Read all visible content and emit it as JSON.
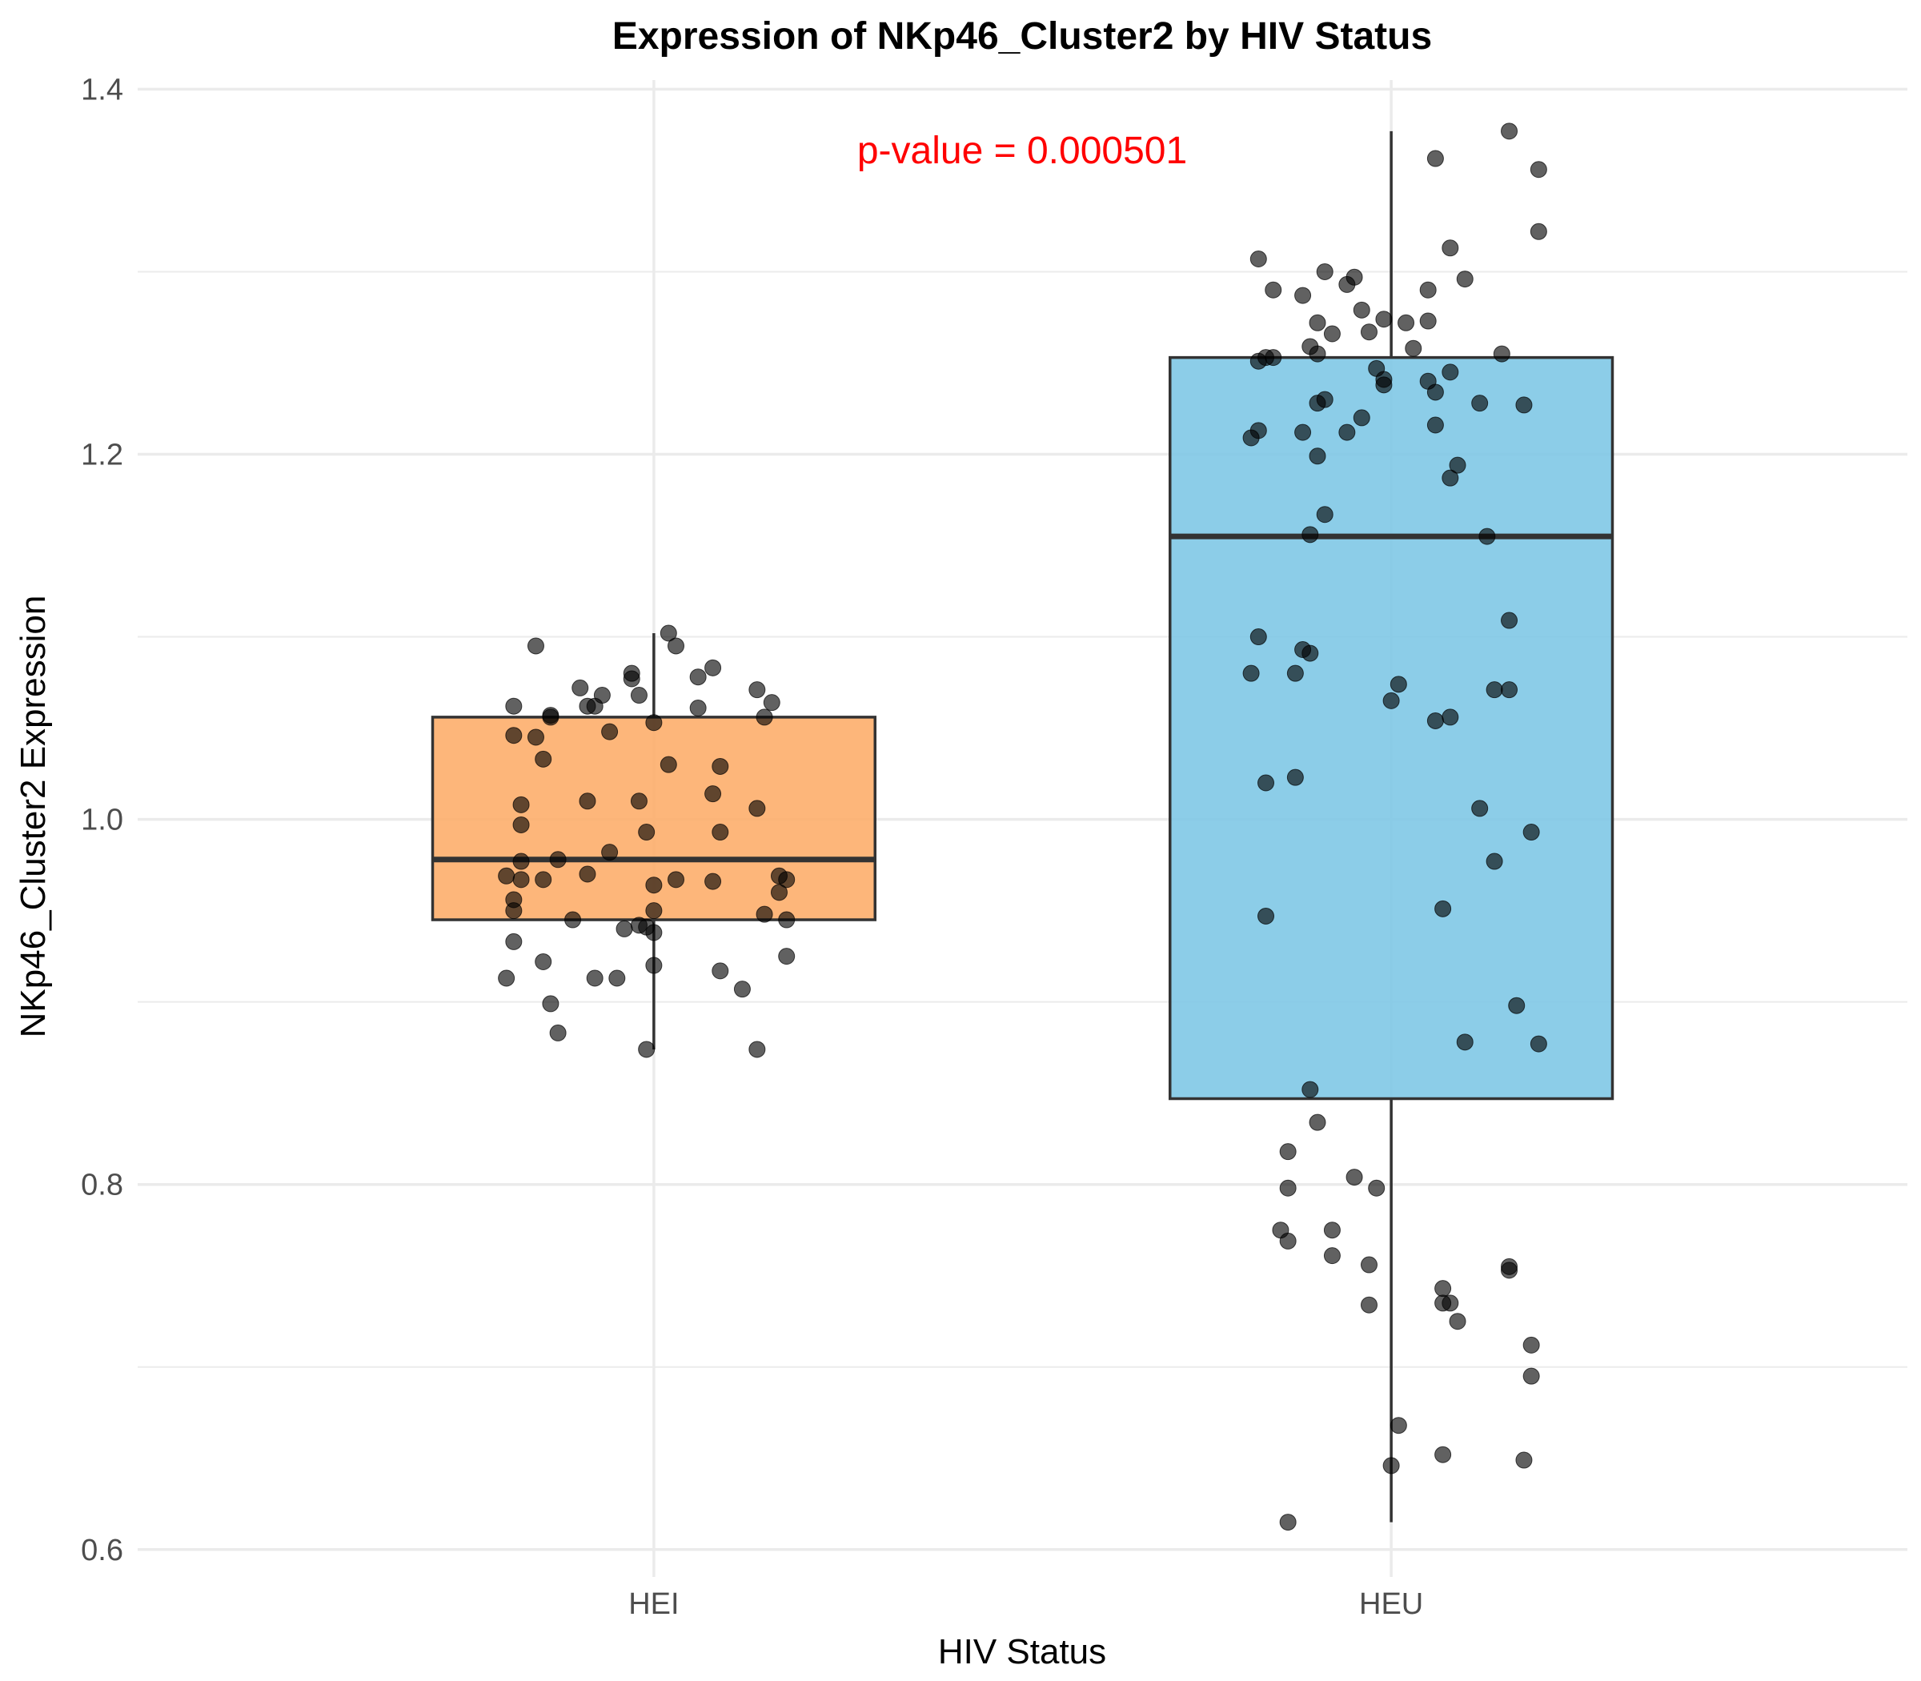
{
  "chart_data": {
    "type": "box",
    "title": "Expression of NKp46_Cluster2 by HIV Status",
    "xlabel": "HIV Status",
    "ylabel": "NKp46_Cluster2 Expression",
    "ylim": [
      0.585,
      1.405
    ],
    "yticks": [
      0.6,
      0.8,
      1.0,
      1.2,
      1.4
    ],
    "ytick_labels": [
      "0.6",
      "0.8",
      "1.0",
      "1.2",
      "1.4"
    ],
    "grid": true,
    "annotation": {
      "text": "p-value = 0.000501",
      "color": "#ff0000",
      "x_between": [
        "HEI",
        "HEU"
      ],
      "y": 1.375
    },
    "categories": [
      "HEI",
      "HEU"
    ],
    "boxes": [
      {
        "category": "HEI",
        "color": "#fdae6b",
        "min": 0.874,
        "q1": 0.945,
        "median": 0.978,
        "q3": 1.056,
        "max": 1.102
      },
      {
        "category": "HEU",
        "color": "#7fc8e6",
        "min": 0.615,
        "q1": 0.847,
        "median": 1.155,
        "q3": 1.253,
        "max": 1.377
      }
    ],
    "points": {
      "HEI": [
        [
          -0.16,
          1.095
        ],
        [
          0.02,
          1.102
        ],
        [
          0.03,
          1.095
        ],
        [
          -0.1,
          1.072
        ],
        [
          -0.03,
          1.08
        ],
        [
          -0.03,
          1.077
        ],
        [
          0.08,
          1.083
        ],
        [
          0.06,
          1.078
        ],
        [
          0.14,
          1.071
        ],
        [
          -0.07,
          1.068
        ],
        [
          -0.02,
          1.068
        ],
        [
          -0.09,
          1.062
        ],
        [
          -0.08,
          1.062
        ],
        [
          -0.19,
          1.062
        ],
        [
          0.06,
          1.061
        ],
        [
          0.16,
          1.064
        ],
        [
          -0.14,
          1.057
        ],
        [
          -0.14,
          1.056
        ],
        [
          0.15,
          1.056
        ],
        [
          0.0,
          1.053
        ],
        [
          -0.06,
          1.048
        ],
        [
          -0.19,
          1.046
        ],
        [
          -0.16,
          1.045
        ],
        [
          -0.15,
          1.033
        ],
        [
          0.02,
          1.03
        ],
        [
          0.09,
          1.029
        ],
        [
          0.08,
          1.014
        ],
        [
          0.14,
          1.006
        ],
        [
          -0.09,
          1.01
        ],
        [
          -0.02,
          1.01
        ],
        [
          -0.18,
          1.008
        ],
        [
          -0.18,
          0.997
        ],
        [
          -0.01,
          0.993
        ],
        [
          0.09,
          0.993
        ],
        [
          -0.06,
          0.982
        ],
        [
          -0.18,
          0.977
        ],
        [
          -0.13,
          0.978
        ],
        [
          -0.2,
          0.969
        ],
        [
          -0.09,
          0.97
        ],
        [
          0.17,
          0.969
        ],
        [
          -0.18,
          0.967
        ],
        [
          -0.15,
          0.967
        ],
        [
          0.0,
          0.964
        ],
        [
          0.03,
          0.967
        ],
        [
          0.08,
          0.966
        ],
        [
          0.18,
          0.967
        ],
        [
          0.17,
          0.96
        ],
        [
          -0.19,
          0.956
        ],
        [
          -0.19,
          0.95
        ],
        [
          0.0,
          0.95
        ],
        [
          0.15,
          0.948
        ],
        [
          0.18,
          0.945
        ],
        [
          -0.11,
          0.945
        ],
        [
          -0.04,
          0.94
        ],
        [
          -0.02,
          0.942
        ],
        [
          -0.01,
          0.941
        ],
        [
          0.0,
          0.938
        ],
        [
          -0.19,
          0.933
        ],
        [
          0.18,
          0.925
        ],
        [
          -0.15,
          0.922
        ],
        [
          0.0,
          0.92
        ],
        [
          0.09,
          0.917
        ],
        [
          -0.2,
          0.913
        ],
        [
          -0.08,
          0.913
        ],
        [
          -0.05,
          0.913
        ],
        [
          0.12,
          0.907
        ],
        [
          -0.14,
          0.899
        ],
        [
          -0.13,
          0.883
        ],
        [
          -0.01,
          0.874
        ],
        [
          0.14,
          0.874
        ]
      ],
      "HEU": [
        [
          0.16,
          1.377
        ],
        [
          0.06,
          1.362
        ],
        [
          0.2,
          1.356
        ],
        [
          0.2,
          1.322
        ],
        [
          0.08,
          1.313
        ],
        [
          -0.18,
          1.307
        ],
        [
          -0.09,
          1.3
        ],
        [
          -0.05,
          1.297
        ],
        [
          0.1,
          1.296
        ],
        [
          -0.16,
          1.29
        ],
        [
          -0.06,
          1.293
        ],
        [
          0.05,
          1.29
        ],
        [
          -0.12,
          1.287
        ],
        [
          -0.04,
          1.279
        ],
        [
          -0.1,
          1.272
        ],
        [
          0.02,
          1.272
        ],
        [
          0.05,
          1.273
        ],
        [
          -0.01,
          1.274
        ],
        [
          -0.08,
          1.266
        ],
        [
          -0.03,
          1.267
        ],
        [
          -0.11,
          1.259
        ],
        [
          0.03,
          1.258
        ],
        [
          -0.1,
          1.255
        ],
        [
          -0.17,
          1.253
        ],
        [
          -0.18,
          1.251
        ],
        [
          -0.16,
          1.253
        ],
        [
          0.15,
          1.255
        ],
        [
          -0.02,
          1.247
        ],
        [
          0.08,
          1.245
        ],
        [
          -0.01,
          1.241
        ],
        [
          0.05,
          1.24
        ],
        [
          -0.01,
          1.238
        ],
        [
          0.06,
          1.234
        ],
        [
          -0.09,
          1.23
        ],
        [
          -0.1,
          1.228
        ],
        [
          0.12,
          1.228
        ],
        [
          0.18,
          1.227
        ],
        [
          -0.04,
          1.22
        ],
        [
          -0.06,
          1.212
        ],
        [
          0.06,
          1.216
        ],
        [
          -0.18,
          1.213
        ],
        [
          -0.12,
          1.212
        ],
        [
          -0.19,
          1.209
        ],
        [
          -0.1,
          1.199
        ],
        [
          0.09,
          1.194
        ],
        [
          0.08,
          1.187
        ],
        [
          -0.09,
          1.167
        ],
        [
          -0.11,
          1.156
        ],
        [
          0.13,
          1.155
        ],
        [
          0.16,
          1.109
        ],
        [
          -0.18,
          1.1
        ],
        [
          -0.12,
          1.093
        ],
        [
          -0.11,
          1.091
        ],
        [
          -0.19,
          1.08
        ],
        [
          -0.13,
          1.08
        ],
        [
          0.01,
          1.074
        ],
        [
          0.14,
          1.071
        ],
        [
          0.16,
          1.071
        ],
        [
          0.0,
          1.065
        ],
        [
          0.06,
          1.054
        ],
        [
          0.08,
          1.056
        ],
        [
          -0.17,
          1.02
        ],
        [
          -0.13,
          1.023
        ],
        [
          0.12,
          1.006
        ],
        [
          0.19,
          0.993
        ],
        [
          0.14,
          0.977
        ],
        [
          0.07,
          0.951
        ],
        [
          -0.17,
          0.947
        ],
        [
          0.17,
          0.898
        ],
        [
          0.1,
          0.878
        ],
        [
          0.2,
          0.877
        ],
        [
          -0.11,
          0.852
        ],
        [
          -0.1,
          0.834
        ],
        [
          -0.14,
          0.818
        ],
        [
          -0.05,
          0.804
        ],
        [
          -0.14,
          0.798
        ],
        [
          -0.02,
          0.798
        ],
        [
          -0.15,
          0.775
        ],
        [
          -0.08,
          0.775
        ],
        [
          -0.14,
          0.769
        ],
        [
          -0.08,
          0.761
        ],
        [
          -0.03,
          0.756
        ],
        [
          0.16,
          0.755
        ],
        [
          0.16,
          0.753
        ],
        [
          0.07,
          0.743
        ],
        [
          0.07,
          0.735
        ],
        [
          0.08,
          0.735
        ],
        [
          -0.03,
          0.734
        ],
        [
          0.09,
          0.725
        ],
        [
          0.19,
          0.712
        ],
        [
          0.19,
          0.695
        ],
        [
          0.01,
          0.668
        ],
        [
          0.07,
          0.652
        ],
        [
          0.18,
          0.649
        ],
        [
          0.0,
          0.646
        ],
        [
          -0.14,
          0.615
        ]
      ]
    }
  }
}
